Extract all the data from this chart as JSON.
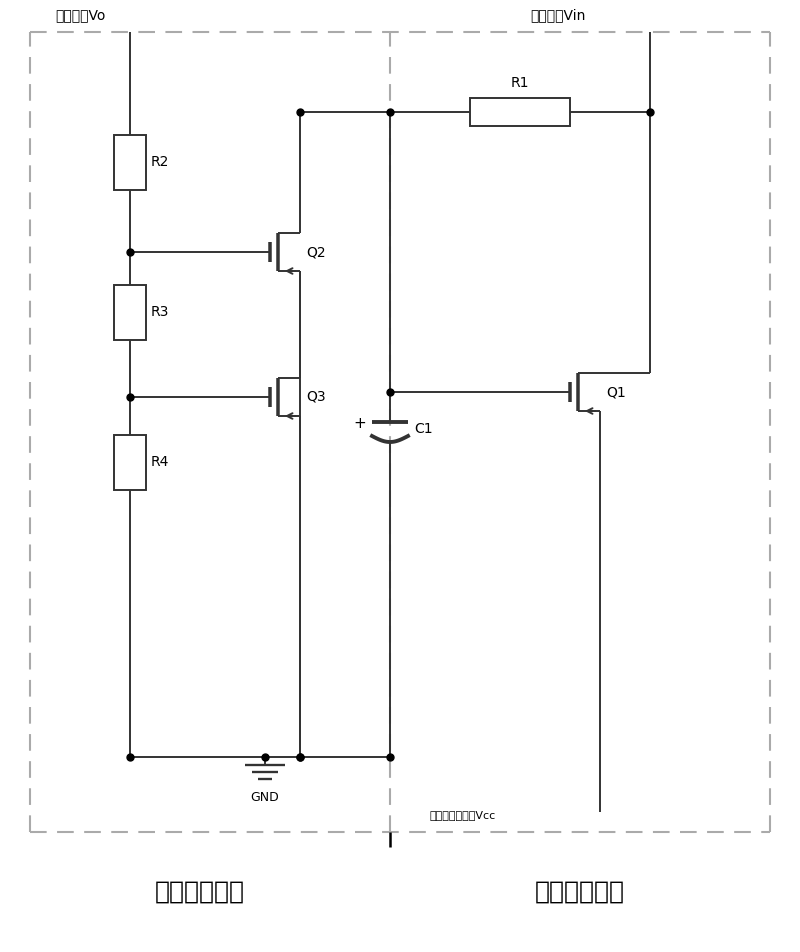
{
  "fig_width": 8.0,
  "fig_height": 9.52,
  "dpi": 100,
  "bg_color": "#ffffff",
  "line_color": "#333333",
  "line_width": 1.4,
  "dash_color": "#aaaaaa",
  "title_left": "采样控制模块",
  "title_right": "延时开关模块",
  "label_Vo": "输出电压Vo",
  "label_Vin": "输入电压Vin",
  "label_Vcc": "驱动电路输入端Vcc",
  "label_GND": "GND",
  "label_R1": "R1",
  "label_R2": "R2",
  "label_R3": "R3",
  "label_R4": "R4",
  "label_Q1": "Q1",
  "label_Q2": "Q2",
  "label_Q3": "Q3",
  "label_C1": "C1"
}
